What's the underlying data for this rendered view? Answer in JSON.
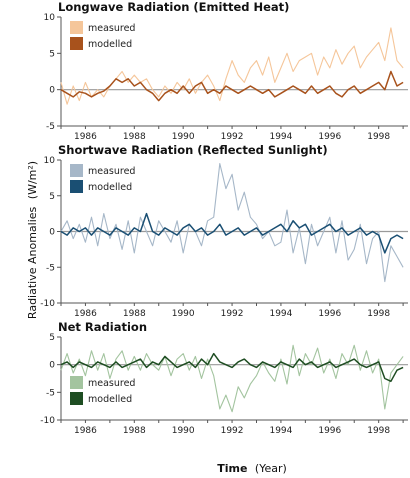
{
  "figure": {
    "ylabel_text": "Radiative Anomalies",
    "ylabel_unit": "(W/m²)",
    "xlabel_main": "Time",
    "xlabel_unit": "(Year)",
    "colors": {
      "axis": "#555555",
      "zero_line": "#9a9a9a"
    }
  },
  "chart_data": [
    {
      "type": "line",
      "title": "Longwave Radiation (Emitted Heat)",
      "ylim": [
        -5,
        10
      ],
      "yticks": [
        -5,
        0,
        5,
        10
      ],
      "xlim": [
        1985,
        1999.2
      ],
      "xticks": [
        1986,
        1988,
        1990,
        1992,
        1994,
        1996,
        1998
      ],
      "legend_position": "upper-left",
      "series": [
        {
          "name": "measured",
          "color": "#f5c69a",
          "x": [
            1985,
            1985.25,
            1985.5,
            1985.75,
            1986,
            1986.25,
            1986.5,
            1986.75,
            1987,
            1987.25,
            1987.5,
            1987.75,
            1988,
            1988.25,
            1988.5,
            1988.75,
            1989,
            1989.25,
            1989.5,
            1989.75,
            1990,
            1990.25,
            1990.5,
            1990.75,
            1991,
            1991.25,
            1991.5,
            1991.75,
            1992,
            1992.25,
            1992.5,
            1992.75,
            1993,
            1993.25,
            1993.5,
            1993.75,
            1994,
            1994.25,
            1994.5,
            1994.75,
            1995,
            1995.25,
            1995.5,
            1995.75,
            1996,
            1996.25,
            1996.5,
            1996.75,
            1997,
            1997.25,
            1997.5,
            1997.75,
            1998,
            1998.25,
            1998.5,
            1998.75,
            1999
          ],
          "values": [
            1,
            -2,
            0.5,
            -1.5,
            1,
            -1,
            0,
            -1,
            0.5,
            1.5,
            2.5,
            1,
            2,
            1,
            1.5,
            0,
            -1,
            0.5,
            -0.5,
            1,
            0,
            1.5,
            -0.5,
            1,
            2,
            0.5,
            -1.5,
            1.5,
            4,
            2,
            1,
            3,
            4,
            2,
            4.5,
            1,
            3,
            5,
            2.5,
            4,
            4.5,
            5,
            2,
            4.5,
            3,
            5.5,
            3.5,
            5,
            6,
            3,
            4.5,
            5.5,
            6.5,
            4,
            8.5,
            4,
            3
          ]
        },
        {
          "name": "modelled",
          "color": "#a8521c",
          "x": [
            1985,
            1985.25,
            1985.5,
            1985.75,
            1986,
            1986.25,
            1986.5,
            1986.75,
            1987,
            1987.25,
            1987.5,
            1987.75,
            1988,
            1988.25,
            1988.5,
            1988.75,
            1989,
            1989.25,
            1989.5,
            1989.75,
            1990,
            1990.25,
            1990.5,
            1990.75,
            1991,
            1991.25,
            1991.5,
            1991.75,
            1992,
            1992.25,
            1992.5,
            1992.75,
            1993,
            1993.25,
            1993.5,
            1993.75,
            1994,
            1994.25,
            1994.5,
            1994.75,
            1995,
            1995.25,
            1995.5,
            1995.75,
            1996,
            1996.25,
            1996.5,
            1996.75,
            1997,
            1997.25,
            1997.5,
            1997.75,
            1998,
            1998.25,
            1998.5,
            1998.75,
            1999
          ],
          "values": [
            0,
            -0.5,
            -1,
            -0.3,
            -0.5,
            -1,
            -0.5,
            -0.2,
            0.5,
            1.5,
            1,
            1.5,
            0.5,
            1,
            0,
            -0.5,
            -1.5,
            -0.5,
            0,
            -0.5,
            0.5,
            -0.5,
            0.5,
            1,
            -0.5,
            0,
            -0.5,
            0.5,
            0,
            -0.5,
            0,
            0.5,
            0,
            -0.5,
            0,
            -1,
            -0.5,
            0,
            0.5,
            0,
            -0.5,
            0.5,
            -0.5,
            0,
            0.5,
            -0.5,
            -1,
            0,
            0.5,
            -0.5,
            0,
            0.5,
            1,
            0,
            2.5,
            0.5,
            1
          ]
        }
      ]
    },
    {
      "type": "line",
      "title": "Shortwave Radiation (Reflected Sunlight)",
      "ylim": [
        -10,
        10
      ],
      "yticks": [
        -10,
        -5,
        0,
        5,
        10
      ],
      "xlim": [
        1985,
        1999.2
      ],
      "xticks": [
        1986,
        1988,
        1990,
        1992,
        1994,
        1996,
        1998
      ],
      "legend_position": "upper-left",
      "series": [
        {
          "name": "measured",
          "color": "#a6b7c8",
          "x": [
            1985,
            1985.25,
            1985.5,
            1985.75,
            1986,
            1986.25,
            1986.5,
            1986.75,
            1987,
            1987.25,
            1987.5,
            1987.75,
            1988,
            1988.25,
            1988.5,
            1988.75,
            1989,
            1989.25,
            1989.5,
            1989.75,
            1990,
            1990.25,
            1990.5,
            1990.75,
            1991,
            1991.25,
            1991.5,
            1991.75,
            1992,
            1992.25,
            1992.5,
            1992.75,
            1993,
            1993.25,
            1993.5,
            1993.75,
            1994,
            1994.25,
            1994.5,
            1994.75,
            1995,
            1995.25,
            1995.5,
            1995.75,
            1996,
            1996.25,
            1996.5,
            1996.75,
            1997,
            1997.25,
            1997.5,
            1997.75,
            1998,
            1998.25,
            1998.5,
            1998.75,
            1999
          ],
          "values": [
            0,
            1.5,
            -1,
            1,
            -1.5,
            2,
            -2,
            2.5,
            -1,
            1,
            -2.5,
            1.5,
            -3,
            2,
            0,
            -2,
            1.5,
            0,
            -1.5,
            1.5,
            -3,
            1,
            0,
            -2,
            1.5,
            2,
            9.5,
            6,
            8,
            3,
            5.5,
            2,
            1,
            -1,
            0,
            -2,
            -1.5,
            3,
            -3,
            0.5,
            -4.5,
            1,
            -2,
            0,
            2,
            -3,
            1.5,
            -4,
            -2.5,
            1,
            -4.5,
            -1,
            0,
            -7,
            -2,
            -3.5,
            -5
          ]
        },
        {
          "name": "modelled",
          "color": "#1a4f73",
          "x": [
            1985,
            1985.25,
            1985.5,
            1985.75,
            1986,
            1986.25,
            1986.5,
            1986.75,
            1987,
            1987.25,
            1987.5,
            1987.75,
            1988,
            1988.25,
            1988.5,
            1988.75,
            1989,
            1989.25,
            1989.5,
            1989.75,
            1990,
            1990.25,
            1990.5,
            1990.75,
            1991,
            1991.25,
            1991.5,
            1991.75,
            1992,
            1992.25,
            1992.5,
            1992.75,
            1993,
            1993.25,
            1993.5,
            1993.75,
            1994,
            1994.25,
            1994.5,
            1994.75,
            1995,
            1995.25,
            1995.5,
            1995.75,
            1996,
            1996.25,
            1996.5,
            1996.75,
            1997,
            1997.25,
            1997.5,
            1997.75,
            1998,
            1998.25,
            1998.5,
            1998.75,
            1999
          ],
          "values": [
            0,
            -0.5,
            0.5,
            0,
            0.5,
            -0.5,
            0.5,
            0,
            -0.5,
            0.5,
            0,
            -0.5,
            0.5,
            0,
            2.5,
            0,
            -0.5,
            0.5,
            0,
            -0.5,
            0.5,
            1,
            0,
            0.5,
            -0.5,
            0,
            1,
            -0.5,
            0,
            0.5,
            -0.5,
            0,
            0.5,
            -0.5,
            0,
            0.5,
            1,
            0,
            1.5,
            0.5,
            1,
            -0.5,
            0,
            0.5,
            1,
            0,
            0.5,
            -0.5,
            0,
            0.5,
            -0.5,
            0,
            -0.5,
            -3,
            -1,
            -0.5,
            -1
          ]
        }
      ]
    },
    {
      "type": "line",
      "title": "Net Radiation",
      "ylim": [
        -10,
        5
      ],
      "yticks": [
        -10,
        -5,
        0,
        5
      ],
      "xlim": [
        1985,
        1999.2
      ],
      "xticks": [
        1986,
        1988,
        1990,
        1992,
        1994,
        1996,
        1998
      ],
      "legend_position": "lower-left",
      "series": [
        {
          "name": "measured",
          "color": "#a3c49f",
          "x": [
            1985,
            1985.25,
            1985.5,
            1985.75,
            1986,
            1986.25,
            1986.5,
            1986.75,
            1987,
            1987.25,
            1987.5,
            1987.75,
            1988,
            1988.25,
            1988.5,
            1988.75,
            1989,
            1989.25,
            1989.5,
            1989.75,
            1990,
            1990.25,
            1990.5,
            1990.75,
            1991,
            1991.25,
            1991.5,
            1991.75,
            1992,
            1992.25,
            1992.5,
            1992.75,
            1993,
            1993.25,
            1993.5,
            1993.75,
            1994,
            1994.25,
            1994.5,
            1994.75,
            1995,
            1995.25,
            1995.5,
            1995.75,
            1996,
            1996.25,
            1996.5,
            1996.75,
            1997,
            1997.25,
            1997.5,
            1997.75,
            1998,
            1998.25,
            1998.5,
            1998.75,
            1999
          ],
          "values": [
            -1,
            2,
            -1.5,
            1,
            -2,
            2.5,
            -1,
            2,
            -2.5,
            1,
            2.5,
            -1,
            1.5,
            -1,
            2,
            0,
            -1,
            1.5,
            -2,
            1,
            2,
            -1,
            1.5,
            -2.5,
            1,
            -2,
            -8,
            -5.5,
            -8.5,
            -4,
            -6,
            -3.5,
            -2,
            0.5,
            -1.5,
            -3,
            1,
            -3.5,
            3.5,
            -2,
            2,
            0,
            3,
            -1.5,
            1,
            -2.5,
            2,
            0,
            3.5,
            -1,
            2.5,
            -1.5,
            1,
            -8,
            -1.5,
            0,
            1.5
          ]
        },
        {
          "name": "modelled",
          "color": "#1e4d22",
          "x": [
            1985,
            1985.25,
            1985.5,
            1985.75,
            1986,
            1986.25,
            1986.5,
            1986.75,
            1987,
            1987.25,
            1987.5,
            1987.75,
            1988,
            1988.25,
            1988.5,
            1988.75,
            1989,
            1989.25,
            1989.5,
            1989.75,
            1990,
            1990.25,
            1990.5,
            1990.75,
            1991,
            1991.25,
            1991.5,
            1991.75,
            1992,
            1992.25,
            1992.5,
            1992.75,
            1993,
            1993.25,
            1993.5,
            1993.75,
            1994,
            1994.25,
            1994.5,
            1994.75,
            1995,
            1995.25,
            1995.5,
            1995.75,
            1996,
            1996.25,
            1996.5,
            1996.75,
            1997,
            1997.25,
            1997.5,
            1997.75,
            1998,
            1998.25,
            1998.5,
            1998.75,
            1999
          ],
          "values": [
            0,
            0.5,
            -0.5,
            0.5,
            0,
            -0.5,
            0.5,
            0,
            -0.5,
            0.5,
            -0.5,
            0,
            0.5,
            1,
            -0.5,
            0.5,
            0,
            1.5,
            0.5,
            -0.5,
            0,
            0.5,
            -0.5,
            1,
            0,
            2,
            0.5,
            0,
            -0.5,
            0.5,
            1,
            0,
            -0.5,
            0.5,
            0,
            -0.5,
            0.5,
            0,
            -0.5,
            1,
            0,
            0.5,
            -0.5,
            0,
            0.5,
            -0.5,
            0,
            0.5,
            1,
            0,
            -0.5,
            0,
            0.5,
            -2.5,
            -3,
            -1,
            -0.5
          ]
        }
      ]
    }
  ]
}
